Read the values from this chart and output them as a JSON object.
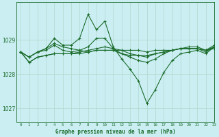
{
  "background_color": "#cbeef3",
  "grid_color": "#b0d8cc",
  "line_color": "#1a6b2a",
  "title": "Graphe pression niveau de la mer (hPa)",
  "xlim": [
    -0.5,
    23
  ],
  "ylim": [
    1026.6,
    1030.1
  ],
  "yticks": [
    1027,
    1028,
    1029
  ],
  "xticks": [
    0,
    1,
    2,
    3,
    4,
    5,
    6,
    7,
    8,
    9,
    10,
    11,
    12,
    13,
    14,
    15,
    16,
    17,
    18,
    19,
    20,
    21,
    22,
    23
  ],
  "series": [
    [
      1028.65,
      1028.5,
      1028.65,
      1028.75,
      1029.05,
      1028.85,
      1028.85,
      1029.05,
      1029.75,
      1029.3,
      1029.55,
      1028.8,
      1028.45,
      1028.15,
      1027.8,
      1027.15,
      1027.55,
      1028.05,
      1028.4,
      1028.6,
      1028.65,
      1028.7,
      1028.6,
      1028.8
    ],
    [
      1028.65,
      1028.5,
      1028.65,
      1028.7,
      1028.85,
      1028.7,
      1028.65,
      1028.7,
      1028.8,
      1029.05,
      1029.05,
      1028.75,
      1028.6,
      1028.55,
      1028.55,
      1028.55,
      1028.6,
      1028.65,
      1028.7,
      1028.75,
      1028.75,
      1028.75,
      1028.65,
      1028.8
    ],
    [
      1028.65,
      1028.35,
      1028.5,
      1028.55,
      1028.6,
      1028.6,
      1028.6,
      1028.6,
      1028.65,
      1028.7,
      1028.7,
      1028.7,
      1028.7,
      1028.7,
      1028.7,
      1028.65,
      1028.7,
      1028.7,
      1028.7,
      1028.75,
      1028.75,
      1028.75,
      1028.7,
      1028.75
    ],
    [
      1028.65,
      1028.35,
      1028.5,
      1028.55,
      1028.6,
      1028.6,
      1028.6,
      1028.65,
      1028.7,
      1028.75,
      1028.8,
      1028.75,
      1028.7,
      1028.6,
      1028.55,
      1028.5,
      1028.6,
      1028.65,
      1028.7,
      1028.75,
      1028.75,
      1028.75,
      1028.7,
      1028.8
    ],
    [
      1028.65,
      1028.5,
      1028.65,
      1028.75,
      1028.9,
      1028.8,
      1028.75,
      1028.7,
      1028.65,
      1028.7,
      1028.7,
      1028.7,
      1028.6,
      1028.5,
      1028.4,
      1028.35,
      1028.45,
      1028.6,
      1028.7,
      1028.75,
      1028.8,
      1028.8,
      1028.7,
      1028.85
    ]
  ]
}
